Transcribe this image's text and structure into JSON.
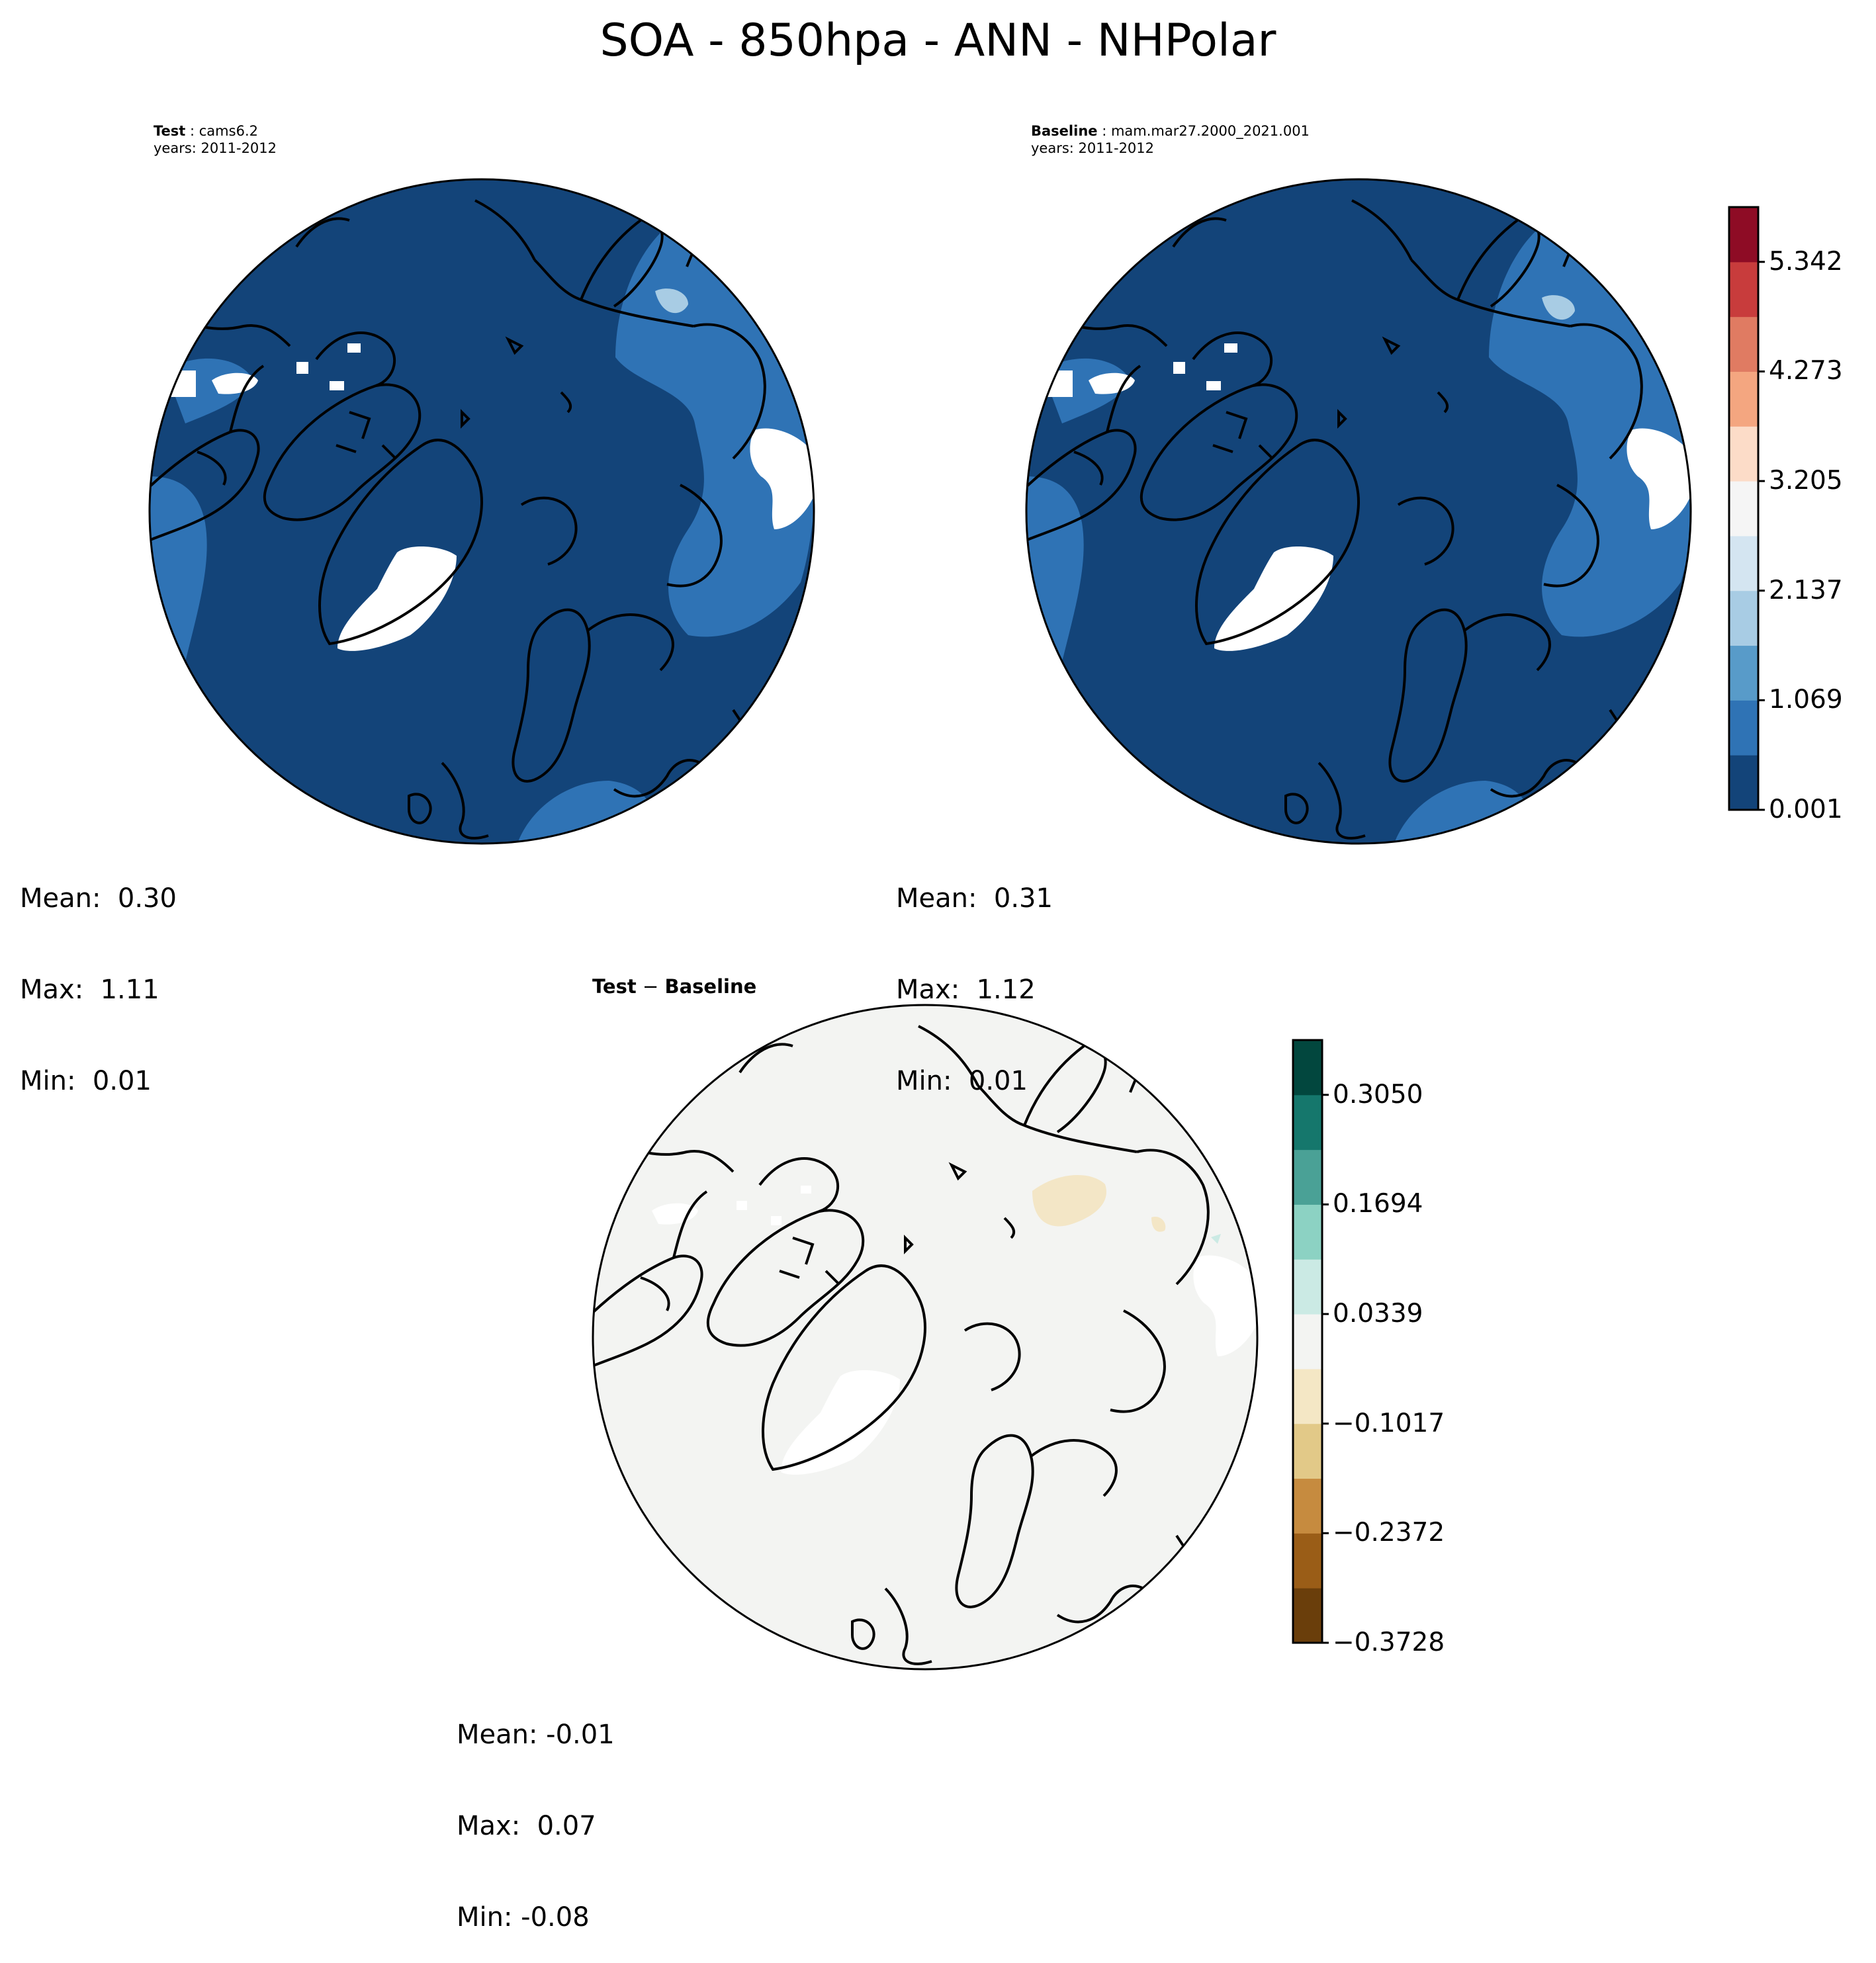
{
  "title": "SOA - 850hpa - ANN - NHPolar",
  "chart_data": [
    {
      "type": "heatmap",
      "projection": "north-polar-stereographic",
      "label_key": "Test",
      "label_value": "cams6.2",
      "years": "years: 2011-2012",
      "stats": [
        "Mean:  0.30",
        "Max:  1.11",
        "Min:  0.01"
      ],
      "field_colors": {
        "background": "#134479",
        "band": "#2f73b5",
        "light": "#a8cce4",
        "missing": "#ffffff"
      }
    },
    {
      "type": "heatmap",
      "projection": "north-polar-stereographic",
      "label_key": "Baseline",
      "label_value": "mam.mar27.2000_2021.001",
      "years": "years: 2011-2012",
      "stats": [
        "Mean:  0.31",
        "Max:  1.12",
        "Min:  0.01"
      ],
      "field_colors": {
        "background": "#134479",
        "band": "#2f73b5",
        "light": "#a8cce4",
        "missing": "#ffffff"
      }
    },
    {
      "type": "heatmap",
      "projection": "north-polar-stereographic",
      "title": "Test − Baseline",
      "title_key_1": "Test",
      "title_sep": " − ",
      "title_key_2": "Baseline",
      "stats": [
        "Mean: -0.01",
        "Max:  0.07",
        "Min: -0.08"
      ],
      "field_colors": {
        "background": "#f3f4f2",
        "negative_small": "#f3e6c6",
        "positive_small": "#cbeae4",
        "missing": "#ffffff"
      }
    }
  ],
  "colorbars": {
    "main": {
      "colors": [
        "#134479",
        "#2f73b5",
        "#589bc9",
        "#a8cce4",
        "#d4e5f1",
        "#f5f5f5",
        "#fcdcc8",
        "#f4a680",
        "#e07b62",
        "#c83c3c",
        "#8e0c25"
      ],
      "ticks": [
        "0.001",
        "1.069",
        "2.137",
        "3.205",
        "4.273",
        "5.342"
      ]
    },
    "diff": {
      "colors": [
        "#6a3e0b",
        "#9a5d17",
        "#c68b3f",
        "#e2c988",
        "#f4e7c5",
        "#f3f4f2",
        "#cbeae4",
        "#8cd2c3",
        "#4aa196",
        "#15776c",
        "#02473e"
      ],
      "ticks": [
        "−0.3728",
        "−0.2372",
        "−0.1017",
        "0.0339",
        "0.1694",
        "0.3050"
      ]
    }
  }
}
